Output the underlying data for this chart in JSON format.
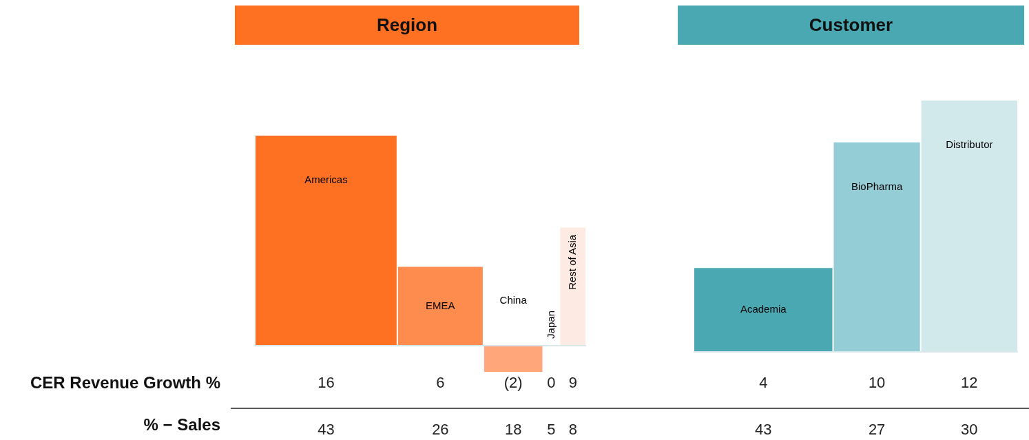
{
  "chart_data": [
    {
      "type": "other",
      "title": "Region",
      "categories": [
        "Americas",
        "EMEA",
        "China",
        "Japan",
        "Rest of Asia"
      ],
      "data_labels": true,
      "series": [
        {
          "name": "CER Revenue Growth %",
          "values": [
            16,
            6,
            -2,
            0,
            9
          ],
          "value_labels": [
            "16",
            "6",
            "(2)",
            "0",
            "9"
          ],
          "colors": [
            "#ff7122",
            "#ff8c4f",
            "#ffa77a",
            "#ffc4a5",
            "#fdeae2"
          ]
        },
        {
          "name": "% − Sales",
          "values": [
            43,
            26,
            18,
            5,
            8
          ]
        }
      ]
    },
    {
      "type": "other",
      "title": "Customer",
      "categories": [
        "Academia",
        "BioPharma",
        "Distributor"
      ],
      "data_labels": true,
      "series": [
        {
          "values": [
            4,
            10,
            12
          ],
          "colors": [
            "#4aa8b2",
            "#94cdd5",
            "#d2e9ec"
          ]
        },
        {
          "values": [
            43,
            27,
            30
          ]
        }
      ]
    }
  ]
}
